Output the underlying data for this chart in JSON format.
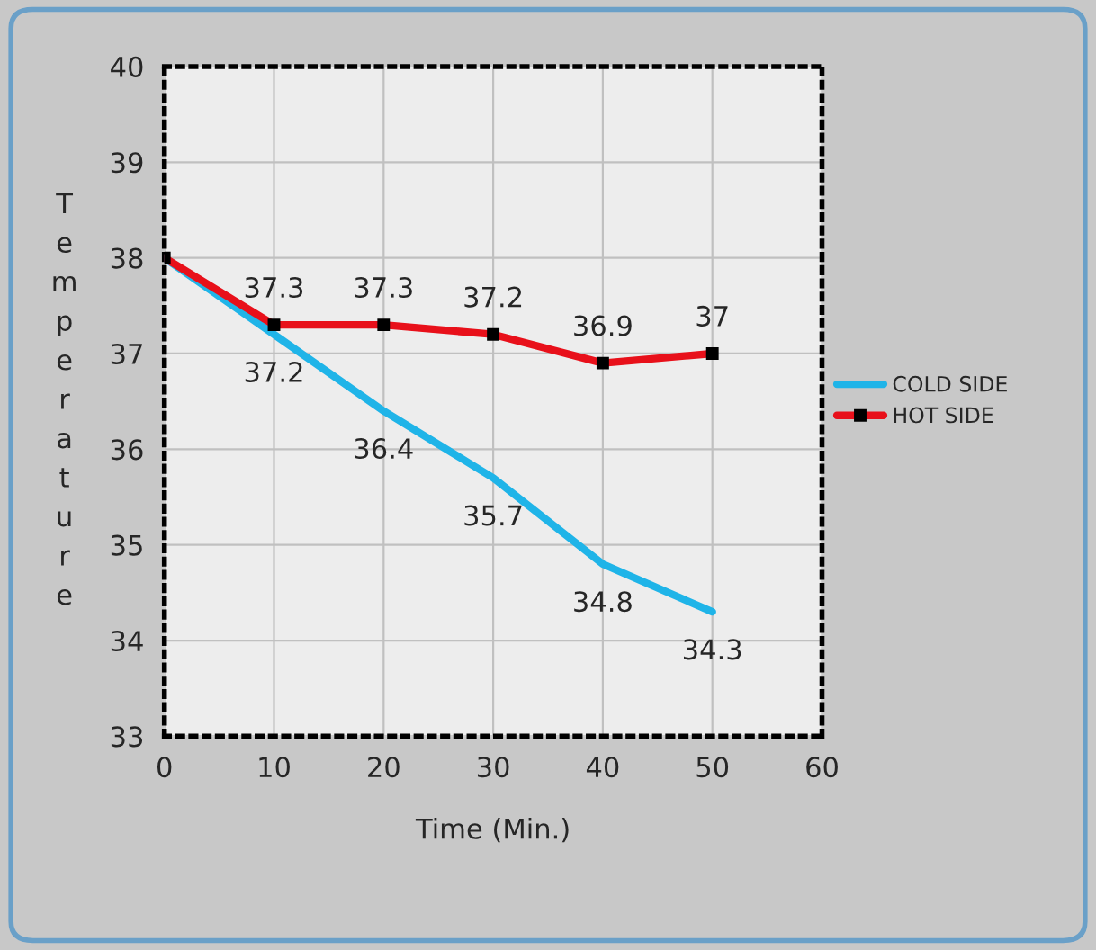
{
  "chart_data": {
    "type": "line",
    "xlabel": "Time (Min.)",
    "ylabel": "Temperature",
    "x": [
      0,
      10,
      20,
      30,
      40,
      50
    ],
    "series": [
      {
        "name": "COLD SIDE",
        "color": "#1fb4e8",
        "marker": "none",
        "values": [
          38,
          37.2,
          36.4,
          35.7,
          34.8,
          34.3
        ],
        "value_labels": [
          null,
          "37.2",
          "36.4",
          "35.7",
          "34.8",
          "34.3"
        ]
      },
      {
        "name": "HOT SIDE",
        "color": "#e8101a",
        "marker": "square",
        "values": [
          38,
          37.3,
          37.3,
          37.2,
          36.9,
          37
        ],
        "value_labels": [
          null,
          "37.3",
          "37.3",
          "37.2",
          "36.9",
          "37"
        ]
      }
    ],
    "xlim": [
      0,
      60
    ],
    "xticks": [
      0,
      10,
      20,
      30,
      40,
      50,
      60
    ],
    "ylim": [
      33,
      40
    ],
    "yticks": [
      33,
      34,
      35,
      36,
      37,
      38,
      39,
      40
    ],
    "grid": true,
    "legend": "right",
    "line_style": "solid"
  }
}
